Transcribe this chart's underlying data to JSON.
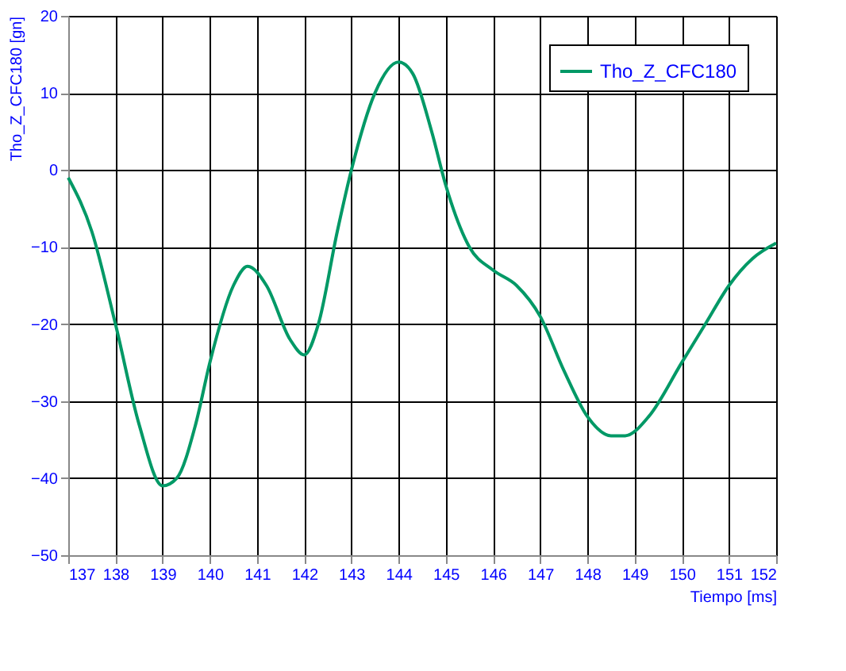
{
  "chart_data": {
    "type": "line",
    "xlabel": "Tiempo [ms]",
    "ylabel": "Tho_Z_CFC180 [gn]",
    "series": [
      {
        "name": "Tho_Z_CFC180",
        "color": "#009966",
        "x": [
          137,
          137.5,
          138,
          138.5,
          139,
          139.3,
          139.7,
          140,
          140.5,
          140.8,
          141.2,
          141.7,
          142,
          142.3,
          142.7,
          143,
          143.5,
          144,
          144.3,
          144.7,
          145,
          145.5,
          146,
          146.5,
          147,
          147.5,
          148,
          148.5,
          148.8,
          149.3,
          150,
          150.5,
          151,
          151.5,
          152
        ],
        "values": [
          -1,
          -8,
          -20,
          -33,
          -41,
          -40,
          -33,
          -25,
          -15,
          -12.5,
          -15,
          -22,
          -24,
          -20,
          -8,
          0,
          10,
          14,
          12.5,
          5,
          -2,
          -10,
          -13,
          -15,
          -19,
          -26,
          -32,
          -34.5,
          -34.5,
          -32,
          -25,
          -20,
          -15,
          -11.5,
          -9.5
        ]
      }
    ],
    "xlim": [
      137,
      152
    ],
    "xticks": [
      137,
      138,
      139,
      140,
      141,
      142,
      143,
      144,
      145,
      146,
      147,
      148,
      149,
      150,
      151,
      152
    ],
    "ylim": [
      -50,
      20
    ],
    "yticks": [
      -50,
      -40,
      -30,
      -20,
      -10,
      0,
      10,
      20
    ],
    "grid": true,
    "legend": "top right",
    "marker": "none",
    "line_style": "solid"
  }
}
